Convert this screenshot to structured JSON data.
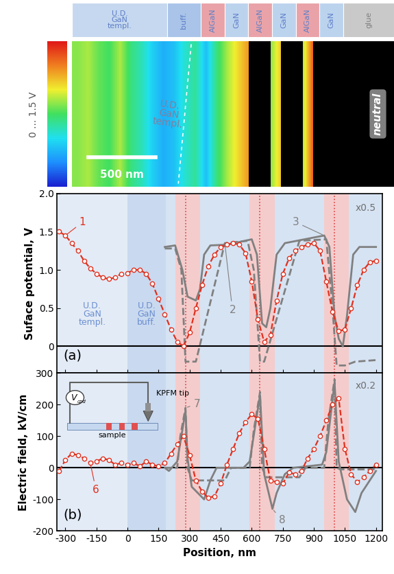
{
  "schematic": {
    "layers": [
      "U.D.\nGaN\ntempl.",
      "buff.",
      "AlGaN",
      "GaN",
      "AlGaN",
      "GaN",
      "AlGaN",
      "GaN",
      "glue"
    ],
    "colors": [
      "#c5d8ef",
      "#a9c4e8",
      "#e9a3a8",
      "#bcd3ee",
      "#e9a3a8",
      "#bcd3ee",
      "#e9a3a8",
      "#bcd3ee",
      "#c9c9c9"
    ]
  },
  "kpfm_image": {
    "cells": [
      [
        0.85,
        0.9,
        0.8,
        0.75,
        0.9,
        0.7,
        0.6,
        0.45,
        0.35,
        0.4,
        0.55,
        0.65,
        0.4,
        0.7,
        0.9,
        1.05,
        1.2,
        null,
        0.85,
        1.1,
        null,
        0.9,
        1.35,
        null,
        0.6,
        null,
        null,
        null,
        null,
        null
      ]
    ],
    "colorbar": {
      "range": [
        0,
        1.5
      ],
      "label": "0 ... 1.5 V"
    },
    "scale_bar": "500 nm",
    "region_text": "U.D.\nGaN\ntempl.",
    "neutral_label": "neutral"
  },
  "chart_data": [
    {
      "type": "line",
      "panel_label": "(a)",
      "ylabel": "Suface potential, V",
      "xlim": [
        -340,
        1230
      ],
      "xticks": [
        -300,
        -150,
        0,
        150,
        300,
        450,
        600,
        750,
        900,
        1050,
        1200
      ],
      "ylim": [
        -0.35,
        2.0
      ],
      "yticks": [
        0,
        0.5,
        {
          "value": 1,
          "label": "1.0"
        },
        1.5,
        {
          "value": 2,
          "label": "2.0"
        }
      ],
      "tick_labels": "y",
      "annotations": [
        "x0.5"
      ],
      "reference_lines": [
        0
      ],
      "vlines": [
        280,
        640,
        1000
      ],
      "regions": [
        {
          "label": "U.D.\nGaN\ntempl.",
          "start": -340,
          "end": 0,
          "color": "#e3ebf6"
        },
        {
          "label": "U.D.\nGaN\nbuff.",
          "start": 0,
          "end": 185,
          "color": "#c9d9ef"
        },
        {
          "start": 185,
          "end": 230,
          "color": "#d6e3f3"
        },
        {
          "start": 230,
          "end": 350,
          "color": "#f5cccc"
        },
        {
          "start": 350,
          "end": 590,
          "color": "#d6e3f3"
        },
        {
          "start": 590,
          "end": 710,
          "color": "#f5cccc"
        },
        {
          "start": 710,
          "end": 950,
          "color": "#d6e3f3"
        },
        {
          "start": 950,
          "end": 1070,
          "color": "#f5cccc"
        },
        {
          "start": 1070,
          "end": 1230,
          "color": "#d6e3f3"
        }
      ],
      "series": [
        {
          "name": "1",
          "color": "#e0301e",
          "marker": "o",
          "line_style": "dashed",
          "x": [
            -330,
            -300,
            -270,
            -240,
            -210,
            -180,
            -150,
            -120,
            -90,
            -60,
            -30,
            0,
            30,
            60,
            90,
            120,
            150,
            180,
            210,
            240,
            270,
            300,
            330,
            360,
            390,
            420,
            450,
            480,
            510,
            540,
            570,
            600,
            630,
            660,
            690,
            720,
            750,
            780,
            810,
            840,
            870,
            900,
            930,
            960,
            990,
            1020,
            1050,
            1080,
            1110,
            1140,
            1170,
            1200
          ],
          "values": [
            1.5,
            1.45,
            1.35,
            1.25,
            1.12,
            1.02,
            0.95,
            0.9,
            0.88,
            0.9,
            0.95,
            0.96,
            1.0,
            1.0,
            0.95,
            0.82,
            0.62,
            0.42,
            0.22,
            0.06,
            0.0,
            0.18,
            0.5,
            0.8,
            1.05,
            1.2,
            1.3,
            1.33,
            1.35,
            1.33,
            1.22,
            0.85,
            0.35,
            0.06,
            0.15,
            0.6,
            0.95,
            1.15,
            1.25,
            1.3,
            1.33,
            1.35,
            1.25,
            0.85,
            0.45,
            0.2,
            0.22,
            0.5,
            0.8,
            1.0,
            1.1,
            1.12
          ]
        },
        {
          "name": "2",
          "color": "#808080",
          "marker": "none",
          "line_style": "dashed",
          "x": [
            180,
            230,
            260,
            280,
            330,
            470,
            580,
            610,
            640,
            660,
            830,
            960,
            990,
            1010,
            1050,
            1100,
            1200
          ],
          "values": [
            1.28,
            1.28,
            1.0,
            -0.2,
            -0.2,
            1.35,
            1.38,
            1.0,
            -0.2,
            -0.2,
            1.38,
            1.4,
            0.5,
            -0.25,
            -0.25,
            -0.2,
            -0.18
          ]
        },
        {
          "name": "3",
          "color": "#808080",
          "marker": "none",
          "line_style": "solid",
          "x": [
            180,
            230,
            265,
            290,
            330,
            350,
            370,
            400,
            480,
            600,
            625,
            650,
            670,
            690,
            720,
            760,
            950,
            975,
            1000,
            1020,
            1040,
            1060,
            1090,
            1120,
            1200
          ],
          "values": [
            1.3,
            1.32,
            1.0,
            0.65,
            0.6,
            0.75,
            1.2,
            1.32,
            1.33,
            1.4,
            1.2,
            0.3,
            0.25,
            0.5,
            1.2,
            1.35,
            1.45,
            1.3,
            0.4,
            0.1,
            0.0,
            0.4,
            1.2,
            1.3,
            1.3
          ]
        }
      ]
    },
    {
      "type": "line",
      "panel_label": "(b)",
      "xlabel": "Position, nm",
      "ylabel": "Electric field, kV/cm",
      "xlim": [
        -340,
        1230
      ],
      "xticks": [
        -300,
        -150,
        0,
        150,
        300,
        450,
        600,
        750,
        900,
        1050,
        1200
      ],
      "ylim": [
        -200,
        300
      ],
      "yticks": [
        -200,
        -100,
        0,
        100,
        200,
        300
      ],
      "annotations": [
        "x0.2"
      ],
      "reference_lines": [
        0
      ],
      "vlines": [
        280,
        640,
        1000
      ],
      "inset": {
        "source": "V",
        "source_subscript": "cpd",
        "tip": "KPFM tip",
        "sample": "sample"
      },
      "regions": [
        {
          "start": -340,
          "end": 0,
          "color": "#e3ebf6"
        },
        {
          "start": 0,
          "end": 185,
          "color": "#c9d9ef"
        },
        {
          "start": 185,
          "end": 230,
          "color": "#d6e3f3"
        },
        {
          "start": 230,
          "end": 350,
          "color": "#f5cccc"
        },
        {
          "start": 350,
          "end": 590,
          "color": "#d6e3f3"
        },
        {
          "start": 590,
          "end": 710,
          "color": "#f5cccc"
        },
        {
          "start": 710,
          "end": 950,
          "color": "#d6e3f3"
        },
        {
          "start": 950,
          "end": 1070,
          "color": "#f5cccc"
        },
        {
          "start": 1070,
          "end": 1230,
          "color": "#d6e3f3"
        }
      ],
      "series": [
        {
          "name": "6",
          "color": "#e0301e",
          "marker": "o",
          "line_style": "dashed",
          "x": [
            -330,
            -300,
            -270,
            -240,
            -210,
            -180,
            -150,
            -120,
            -90,
            -60,
            -30,
            0,
            30,
            60,
            90,
            120,
            150,
            180,
            210,
            240,
            270,
            300,
            330,
            360,
            390,
            420,
            450,
            480,
            510,
            540,
            570,
            600,
            630,
            660,
            690,
            720,
            750,
            780,
            810,
            840,
            870,
            900,
            930,
            960,
            990,
            1020,
            1050,
            1080,
            1110,
            1140,
            1170,
            1200
          ],
          "values": [
            -10,
            25,
            45,
            40,
            30,
            15,
            20,
            30,
            25,
            10,
            15,
            10,
            15,
            5,
            20,
            10,
            5,
            15,
            45,
            75,
            100,
            40,
            -40,
            -75,
            -95,
            -90,
            -50,
            10,
            60,
            110,
            145,
            170,
            155,
            60,
            -40,
            -45,
            -50,
            -15,
            -20,
            -10,
            30,
            60,
            100,
            150,
            200,
            220,
            60,
            -20,
            -45,
            -30,
            -10,
            10
          ]
        },
        {
          "name": "7",
          "color": "#808080",
          "marker": "none",
          "line_style": "dashed",
          "x": [
            180,
            240,
            255,
            280,
            290,
            310,
            470,
            500,
            590,
            610,
            640,
            650,
            670,
            830,
            860,
            950,
            970,
            1000,
            1010,
            1030,
            1200
          ],
          "values": [
            0,
            0,
            100,
            190,
            0,
            -40,
            -40,
            0,
            0,
            120,
            240,
            0,
            -30,
            -30,
            0,
            0,
            150,
            280,
            0,
            -5,
            -5
          ]
        },
        {
          "name": "8",
          "color": "#808080",
          "marker": "none",
          "line_style": "solid",
          "x": [
            180,
            200,
            220,
            240,
            280,
            290,
            310,
            340,
            370,
            400,
            430,
            560,
            590,
            640,
            660,
            700,
            720,
            760,
            800,
            940,
            960,
            1000,
            1020,
            1060,
            1100,
            1130,
            1200
          ],
          "values": [
            0,
            -10,
            5,
            20,
            180,
            30,
            -60,
            -80,
            -100,
            -40,
            0,
            0,
            20,
            230,
            -20,
            -130,
            -80,
            -20,
            0,
            10,
            50,
            270,
            20,
            -100,
            -140,
            -80,
            -10
          ]
        }
      ]
    }
  ]
}
